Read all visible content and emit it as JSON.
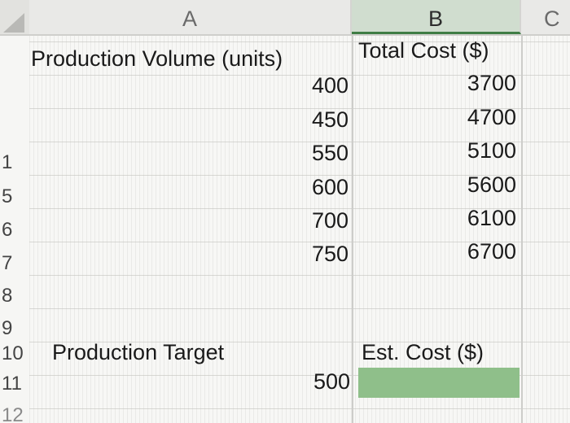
{
  "sheet": {
    "columns": [
      "A",
      "B",
      "C"
    ],
    "selected_column": "B",
    "rows": [
      "1",
      "5",
      "6",
      "7",
      "8",
      "9",
      "10",
      "11",
      "12"
    ],
    "header_a": "Production Volume (units)",
    "header_b": "Total Cost ($)",
    "volumes": [
      "400",
      "450",
      "550",
      "600",
      "700",
      "750"
    ],
    "costs": [
      "3700",
      "4700",
      "5100",
      "5600",
      "6100",
      "6700"
    ],
    "production_target_label": "Production Target",
    "est_cost_label": "Est. Cost ($)",
    "production_target_value": "500",
    "est_cost_value": ""
  },
  "colors": {
    "selected_header": "#d0ddcf",
    "selected_underline": "#3f7d45",
    "est_cost_fill": "#8fbf8a"
  }
}
